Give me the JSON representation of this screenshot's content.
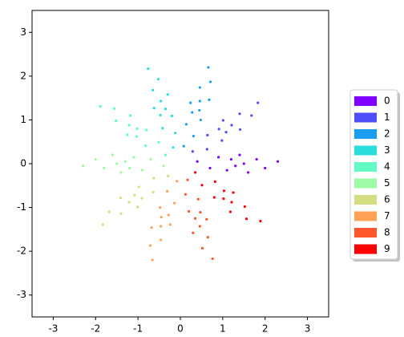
{
  "chart_data": {
    "type": "scatter",
    "xlim": [
      -3.5,
      3.5
    ],
    "ylim": [
      -3.5,
      3.5
    ],
    "xticks": [
      -3,
      -2,
      -1,
      0,
      1,
      2,
      3
    ],
    "yticks": [
      -3,
      -2,
      -1,
      0,
      1,
      2,
      3
    ],
    "legend": "right",
    "series": [
      {
        "name": "0",
        "color": "#8000ff",
        "x": [
          0.4,
          0.7,
          0.9,
          1.1,
          1.2,
          1.3,
          1.4,
          1.5,
          1.6,
          1.8,
          2.0,
          2.3
        ],
        "y": [
          0.05,
          -0.1,
          0.15,
          -0.15,
          0.1,
          -0.05,
          0.2,
          0,
          -0.2,
          0.1,
          -0.1,
          0.05
        ]
      },
      {
        "name": "1",
        "color": "#4e4dfc",
        "x": [
          0.29,
          0.63,
          0.64,
          0.98,
          0.91,
          1.08,
          1.01,
          1.21,
          1.41,
          1.4,
          1.68,
          1.83
        ],
        "y": [
          0.28,
          0.33,
          0.65,
          0.53,
          0.79,
          0.72,
          0.99,
          0.88,
          0.78,
          1.14,
          1.1,
          1.39
        ]
      },
      {
        "name": "2",
        "color": "#1c9df0",
        "x": [
          0.08,
          0.31,
          0.14,
          0.48,
          0.28,
          0.45,
          0.24,
          0.46,
          0.68,
          0.46,
          0.71,
          0.66
        ],
        "y": [
          0.4,
          0.63,
          0.9,
          1.0,
          1.17,
          1.22,
          1.39,
          1.43,
          1.46,
          1.74,
          1.87,
          2.2
        ]
      },
      {
        "name": "3",
        "color": "#2adddd",
        "x": [
          -0.17,
          -0.12,
          -0.42,
          -0.2,
          -0.47,
          -0.35,
          -0.62,
          -0.46,
          -0.3,
          -0.65,
          -0.52,
          -0.76
        ],
        "y": [
          0.37,
          0.7,
          0.81,
          1.09,
          1.11,
          1.25,
          1.27,
          1.43,
          1.58,
          1.68,
          1.93,
          2.17
        ]
      },
      {
        "name": "4",
        "color": "#62fbc4",
        "x": [
          -0.35,
          -0.51,
          -0.82,
          -0.8,
          -1.03,
          -1.02,
          -1.25,
          -1.21,
          -1.18,
          -1.52,
          -1.56,
          -1.89
        ],
        "y": [
          0.2,
          0.49,
          0.41,
          0.77,
          0.62,
          0.8,
          0.66,
          0.88,
          1.1,
          0.98,
          1.26,
          1.31
        ]
      },
      {
        "name": "5",
        "color": "#9cfba4",
        "x": [
          -0.4,
          -0.7,
          -0.9,
          -1.1,
          -1.2,
          -1.3,
          -1.4,
          -1.5,
          -1.6,
          -1.8,
          -2.0,
          -2.3
        ],
        "y": [
          -0.05,
          0.1,
          -0.15,
          0.15,
          -0.1,
          0.05,
          -0.2,
          0,
          0.2,
          -0.1,
          0.1,
          -0.05
        ]
      },
      {
        "name": "6",
        "color": "#d4dd80",
        "x": [
          -0.29,
          -0.63,
          -0.64,
          -0.98,
          -0.91,
          -1.08,
          -1.01,
          -1.21,
          -1.41,
          -1.4,
          -1.68,
          -1.83
        ],
        "y": [
          -0.28,
          -0.33,
          -0.65,
          -0.53,
          -0.79,
          -0.72,
          -0.99,
          -0.88,
          -0.78,
          -1.14,
          -1.1,
          -1.39
        ]
      },
      {
        "name": "7",
        "color": "#ffa256",
        "x": [
          -0.08,
          -0.31,
          -0.14,
          -0.48,
          -0.28,
          -0.45,
          -0.24,
          -0.46,
          -0.68,
          -0.46,
          -0.71,
          -0.66
        ],
        "y": [
          -0.4,
          -0.63,
          -0.9,
          -1.0,
          -1.17,
          -1.22,
          -1.39,
          -1.43,
          -1.46,
          -1.74,
          -1.87,
          -2.2
        ]
      },
      {
        "name": "8",
        "color": "#ff562c",
        "x": [
          0.17,
          0.12,
          0.42,
          0.2,
          0.47,
          0.35,
          0.62,
          0.46,
          0.3,
          0.65,
          0.52,
          0.76
        ],
        "y": [
          -0.37,
          -0.7,
          -0.81,
          -1.09,
          -1.11,
          -1.25,
          -1.27,
          -1.43,
          -1.58,
          -1.68,
          -1.93,
          -2.17
        ]
      },
      {
        "name": "9",
        "color": "#ff0000",
        "x": [
          0.35,
          0.51,
          0.82,
          0.8,
          1.03,
          1.02,
          1.25,
          1.21,
          1.18,
          1.52,
          1.56,
          1.89
        ],
        "y": [
          -0.2,
          -0.49,
          -0.41,
          -0.77,
          -0.62,
          -0.8,
          -0.66,
          -0.88,
          -1.1,
          -0.98,
          -1.26,
          -1.31
        ]
      }
    ]
  }
}
